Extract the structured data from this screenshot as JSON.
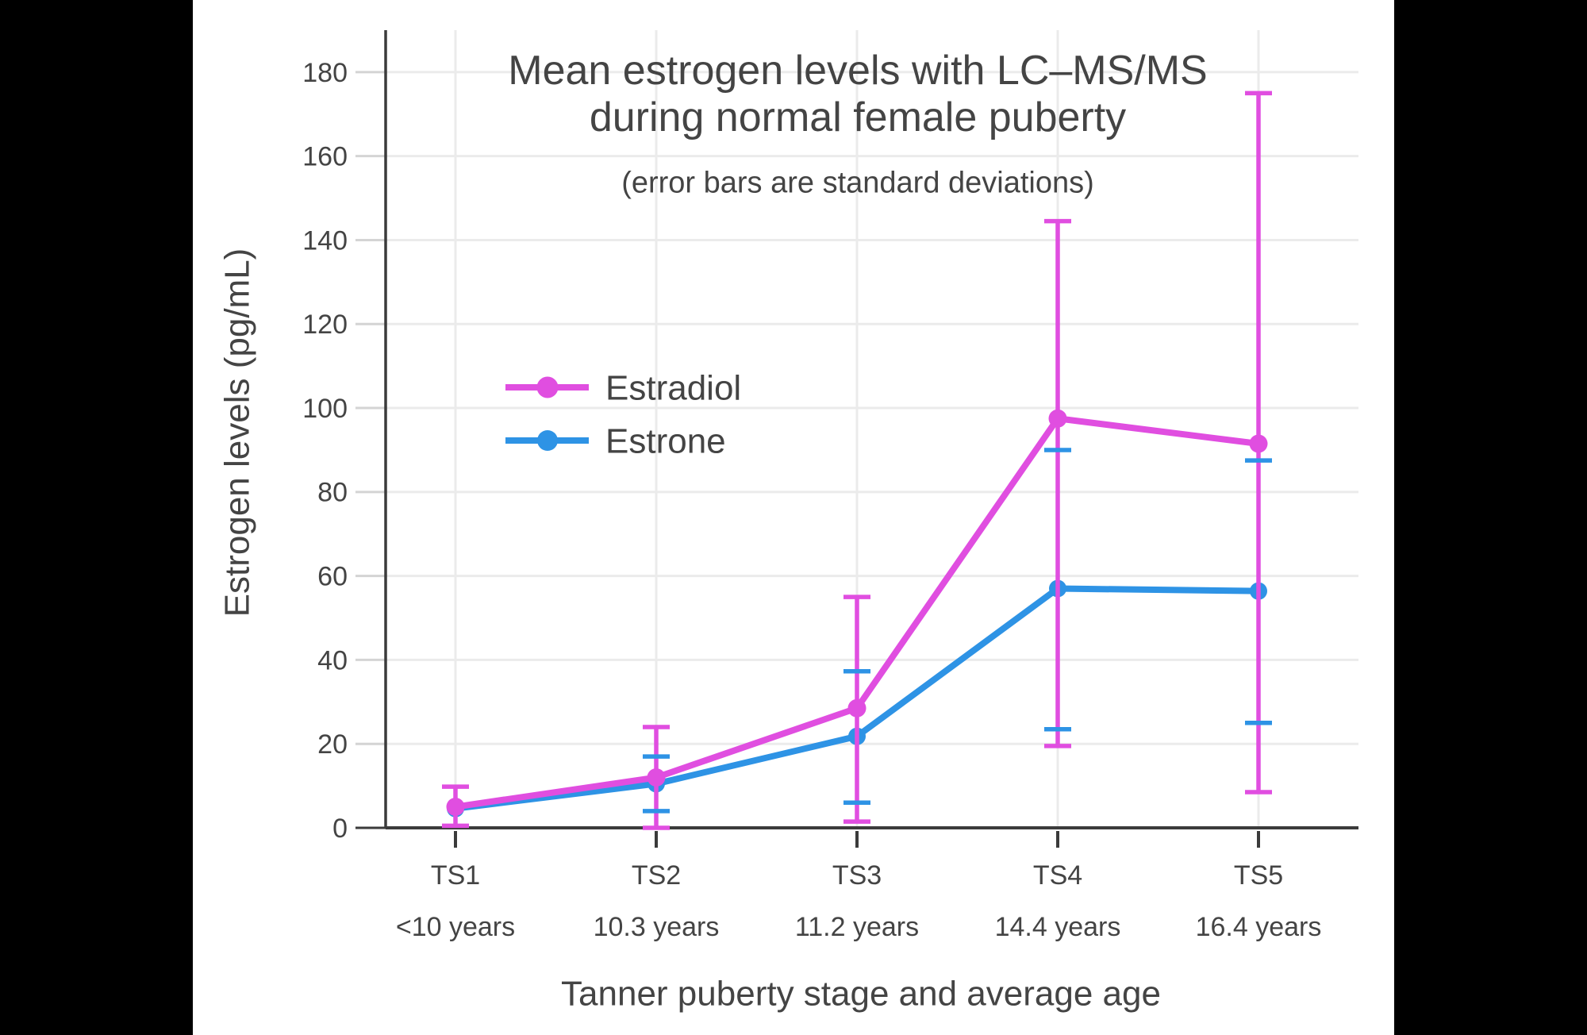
{
  "frame": {
    "side_bar_color": "#000000",
    "panel_background": "#ffffff"
  },
  "title": {
    "line1": "Mean estrogen levels with LC–MS/MS",
    "line2": "during normal female puberty",
    "subtitle": "(error bars are standard deviations)"
  },
  "axes": {
    "y": {
      "title": "Estrogen levels (pg/mL)",
      "ticks": [
        0,
        20,
        40,
        60,
        80,
        100,
        120,
        140,
        160,
        180
      ],
      "range": [
        0,
        190
      ]
    },
    "x": {
      "title": "Tanner puberty stage and average age",
      "stages": [
        "TS1",
        "TS2",
        "TS3",
        "TS4",
        "TS5"
      ],
      "ages": [
        "<10 years",
        "10.3 years",
        "11.2 years",
        "14.4 years",
        "16.4 years"
      ]
    }
  },
  "legend": [
    {
      "label": "Estradiol",
      "color": "#E04EE0"
    },
    {
      "label": "Estrone",
      "color": "#2E93E5"
    }
  ],
  "colors": {
    "grid": "#ebebeb",
    "axis_line": "#3b3b3b",
    "y_tick": "#d4d4d4",
    "y_tick_zero": "#3b3b3b",
    "text": "#444444"
  },
  "chart_data": {
    "type": "line",
    "title": "Mean estrogen levels with LC–MS/MS during normal female puberty",
    "subtitle": "(error bars are standard deviations)",
    "xlabel": "Tanner puberty stage and average age",
    "ylabel": "Estrogen levels (pg/mL)",
    "ylim": [
      0,
      190
    ],
    "grid": true,
    "legend_position": "inside upper-left",
    "categories": [
      "TS1 (<10 years)",
      "TS2 (10.3 years)",
      "TS3 (11.2 years)",
      "TS4 (14.4 years)",
      "TS5 (16.4 years)"
    ],
    "series": [
      {
        "name": "Estradiol",
        "color": "#E04EE0",
        "units": "pg/mL",
        "values": [
          5,
          12,
          28.5,
          97.5,
          91.5
        ],
        "error_low_abs": [
          0.5,
          0,
          1.5,
          19.5,
          8.5
        ],
        "error_high_abs": [
          9.8,
          24,
          55,
          144.5,
          175
        ]
      },
      {
        "name": "Estrone",
        "color": "#2E93E5",
        "units": "pg/mL",
        "values": [
          4.6,
          10.5,
          21.8,
          57,
          56.4
        ],
        "error_low_abs": [
          null,
          4,
          6,
          23.5,
          25
        ],
        "error_high_abs": [
          null,
          17,
          37.3,
          90,
          87.5
        ]
      }
    ]
  }
}
